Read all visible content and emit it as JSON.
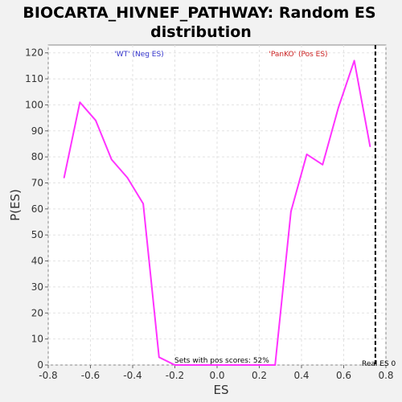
{
  "chart_data": {
    "type": "line",
    "title_line1": "BIOCARTA_HIVNEF_PATHWAY: Random ES",
    "title_line2": "distribution",
    "xlabel": "ES",
    "ylabel": "P(ES)",
    "xlim": [
      -0.8,
      0.8
    ],
    "ylim": [
      0,
      123
    ],
    "xticks": [
      -0.8,
      -0.6,
      -0.4,
      -0.2,
      0.0,
      0.2,
      0.4,
      0.6,
      0.8
    ],
    "xtick_labels": [
      "-0.8",
      "-0.6",
      "-0.4",
      "-0.2",
      "0.0",
      "0.2",
      "0.4",
      "0.6",
      "0.8"
    ],
    "yticks": [
      0,
      10,
      20,
      30,
      40,
      50,
      60,
      70,
      80,
      90,
      100,
      110,
      120
    ],
    "ytick_labels": [
      "0",
      "10",
      "20",
      "30",
      "40",
      "50",
      "60",
      "70",
      "80",
      "90",
      "100",
      "110",
      "120"
    ],
    "grid": true,
    "series": [
      {
        "color": "#ff33ff",
        "x": [
          -0.725,
          -0.65,
          -0.575,
          -0.5,
          -0.425,
          -0.35,
          -0.275,
          -0.2,
          -0.125,
          -0.05,
          0.025,
          0.1,
          0.175,
          0.25,
          0.275,
          0.35,
          0.425,
          0.5,
          0.575,
          0.65,
          0.725
        ],
        "y": [
          72,
          101,
          94,
          79,
          72,
          62,
          3,
          0,
          0,
          0,
          0,
          0,
          0,
          0,
          0,
          59,
          81,
          77,
          99,
          117,
          84
        ]
      }
    ],
    "real_es": {
      "x": 0.75,
      "label": "Real ES 0",
      "color": "#000000"
    },
    "annotations": {
      "neg_label": "'WT' (Neg ES)",
      "neg_color": "#3333cc",
      "pos_label": "'PanKO' (Pos ES)",
      "pos_color": "#cc2222",
      "pos_scores": "Sets with pos scores: 52%"
    }
  }
}
